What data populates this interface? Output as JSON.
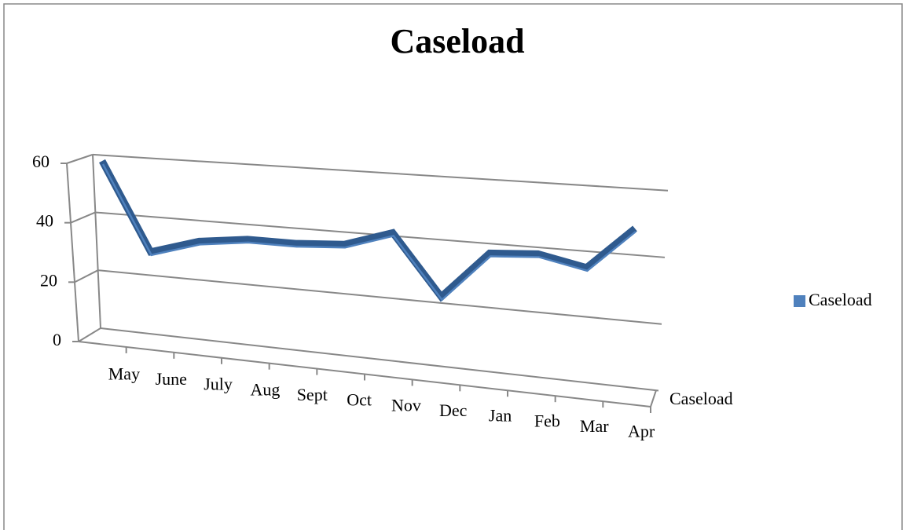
{
  "chart_data": {
    "type": "line",
    "title": "Caseload",
    "categories": [
      "May",
      "June",
      "July",
      "Aug",
      "Sept",
      "Oct",
      "Nov",
      "Dec",
      "Jan",
      "Feb",
      "Mar",
      "Apr"
    ],
    "series": [
      {
        "name": "Caseload",
        "color": "#4f81bd",
        "values": [
          58,
          28,
          33,
          35,
          35,
          36,
          41,
          22,
          37,
          38,
          35,
          48
        ]
      }
    ],
    "ylim": [
      0,
      60
    ],
    "yticks": [
      0,
      20,
      40,
      60
    ],
    "grid": true,
    "legend": "right"
  }
}
